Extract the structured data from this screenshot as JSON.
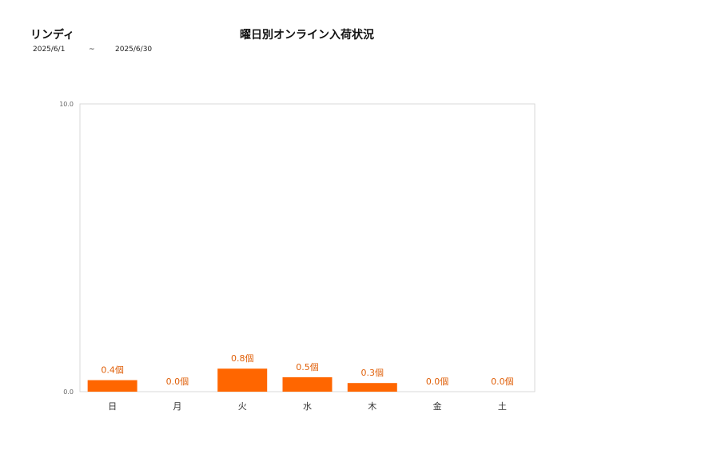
{
  "header": {
    "brand": "リンディ",
    "title": "曜日別オンライン入荷状況",
    "date_from": "2025/6/1",
    "date_sep": "~",
    "date_to": "2025/6/30"
  },
  "chart_data": {
    "type": "bar",
    "categories": [
      "日",
      "月",
      "火",
      "水",
      "木",
      "金",
      "土"
    ],
    "values": [
      0.4,
      0.0,
      0.8,
      0.5,
      0.3,
      0.0,
      0.0
    ],
    "value_labels": [
      "0.4個",
      "0.0個",
      "0.8個",
      "0.5個",
      "0.3個",
      "0.0個",
      "0.0個"
    ],
    "ylim": [
      0,
      10
    ],
    "yticks": [
      "0.0",
      "10.0"
    ],
    "bar_color": "#ff6600",
    "label_color": "#e0600a",
    "grid": false
  }
}
